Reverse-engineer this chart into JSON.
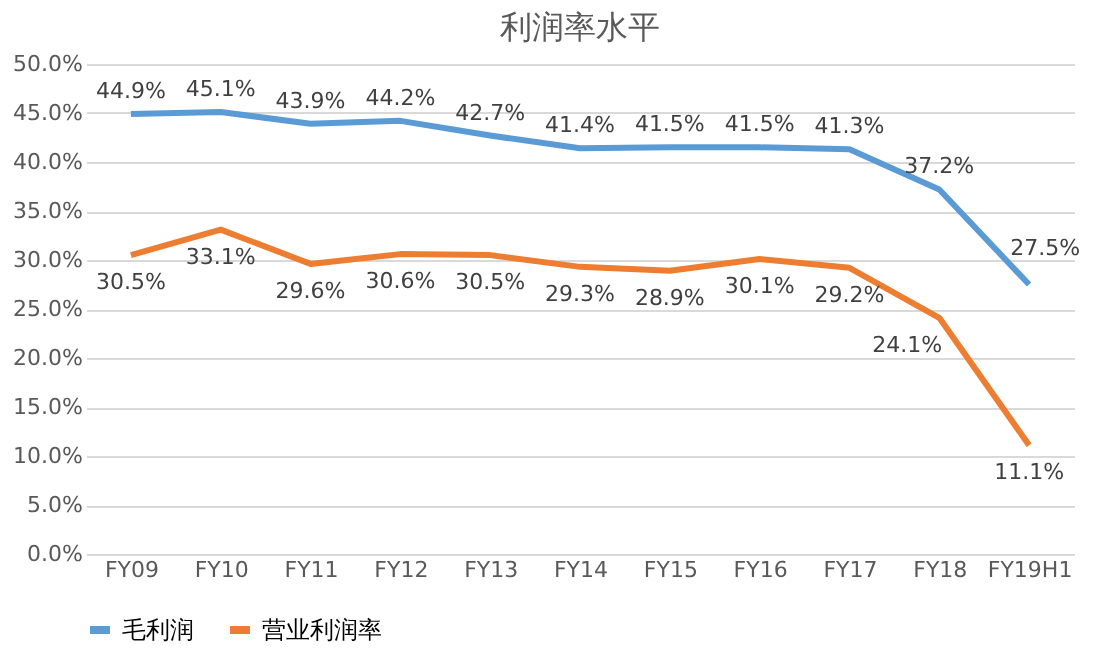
{
  "chart_data": {
    "type": "line",
    "title": "利润率水平",
    "categories": [
      "FY09",
      "FY10",
      "FY11",
      "FY12",
      "FY13",
      "FY14",
      "FY15",
      "FY16",
      "FY17",
      "FY18",
      "FY19H1"
    ],
    "series": [
      {
        "name": "毛利润",
        "color": "#5b9bd5",
        "values": [
          44.9,
          45.1,
          43.9,
          44.2,
          42.7,
          41.4,
          41.5,
          41.5,
          41.3,
          37.2,
          27.5
        ],
        "value_labels": [
          "44.9%",
          "45.1%",
          "43.9%",
          "44.2%",
          "42.7%",
          "41.4%",
          "41.5%",
          "41.5%",
          "41.3%",
          "37.2%",
          "27.5%"
        ]
      },
      {
        "name": "营业利润率",
        "color": "#ed7d31",
        "values": [
          30.5,
          33.1,
          29.6,
          30.6,
          30.5,
          29.3,
          28.9,
          30.1,
          29.2,
          24.1,
          11.1
        ],
        "value_labels": [
          "30.5%",
          "33.1%",
          "29.6%",
          "30.6%",
          "30.5%",
          "29.3%",
          "28.9%",
          "30.1%",
          "29.2%",
          "24.1%",
          "11.1%"
        ]
      }
    ],
    "ylim": [
      0,
      50
    ],
    "yticks": [
      {
        "value": 0,
        "label": "0.0%"
      },
      {
        "value": 5,
        "label": "5.0%"
      },
      {
        "value": 10,
        "label": "10.0%"
      },
      {
        "value": 15,
        "label": "15.0%"
      },
      {
        "value": 20,
        "label": "20.0%"
      },
      {
        "value": 25,
        "label": "25.0%"
      },
      {
        "value": 30,
        "label": "30.0%"
      },
      {
        "value": 35,
        "label": "35.0%"
      },
      {
        "value": 40,
        "label": "40.0%"
      },
      {
        "value": 45,
        "label": "45.0%"
      },
      {
        "value": 50,
        "label": "50.0%"
      }
    ],
    "grid": "y",
    "legend": "bottom",
    "marker": "none",
    "line_style": "solid"
  }
}
